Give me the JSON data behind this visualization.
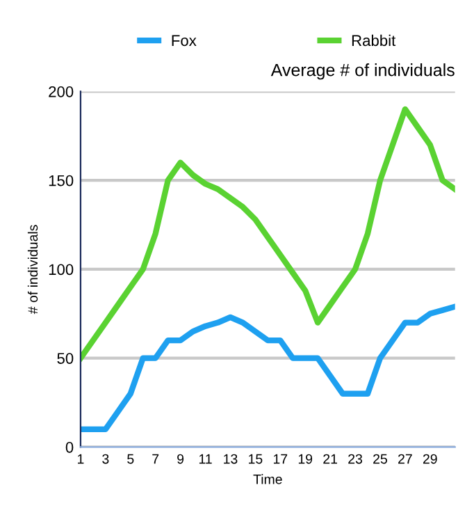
{
  "chart_data": {
    "type": "line",
    "title": "Average # of individuals",
    "xlabel": "Time",
    "ylabel": "# of individuals",
    "x": [
      1,
      2,
      3,
      4,
      5,
      6,
      7,
      8,
      9,
      10,
      11,
      12,
      13,
      14,
      15,
      16,
      17,
      18,
      19,
      20,
      21,
      22,
      23,
      24,
      25,
      26,
      27,
      28,
      29,
      30,
      31
    ],
    "series": [
      {
        "name": "Fox",
        "color": "#1ea0f0",
        "values": [
          10,
          10,
          10,
          20,
          30,
          50,
          50,
          60,
          60,
          65,
          68,
          70,
          73,
          70,
          65,
          60,
          60,
          50,
          50,
          50,
          40,
          30,
          30,
          30,
          50,
          60,
          70,
          70,
          75,
          77,
          79
        ]
      },
      {
        "name": "Rabbit",
        "color": "#5ad232",
        "values": [
          50,
          60,
          70,
          80,
          90,
          100,
          120,
          150,
          160,
          153,
          148,
          145,
          140,
          135,
          128,
          118,
          108,
          98,
          88,
          70,
          80,
          90,
          100,
          120,
          150,
          170,
          190,
          180,
          170,
          150,
          145
        ]
      }
    ],
    "xlim": [
      1,
      31
    ],
    "ylim": [
      0,
      200
    ],
    "xticks": [
      1,
      3,
      5,
      7,
      9,
      11,
      13,
      15,
      17,
      19,
      21,
      23,
      25,
      27,
      29
    ],
    "yticks": [
      0,
      50,
      100,
      150,
      200
    ],
    "grid": "y",
    "legend": "top",
    "marker": "none",
    "line_style": "solid"
  }
}
